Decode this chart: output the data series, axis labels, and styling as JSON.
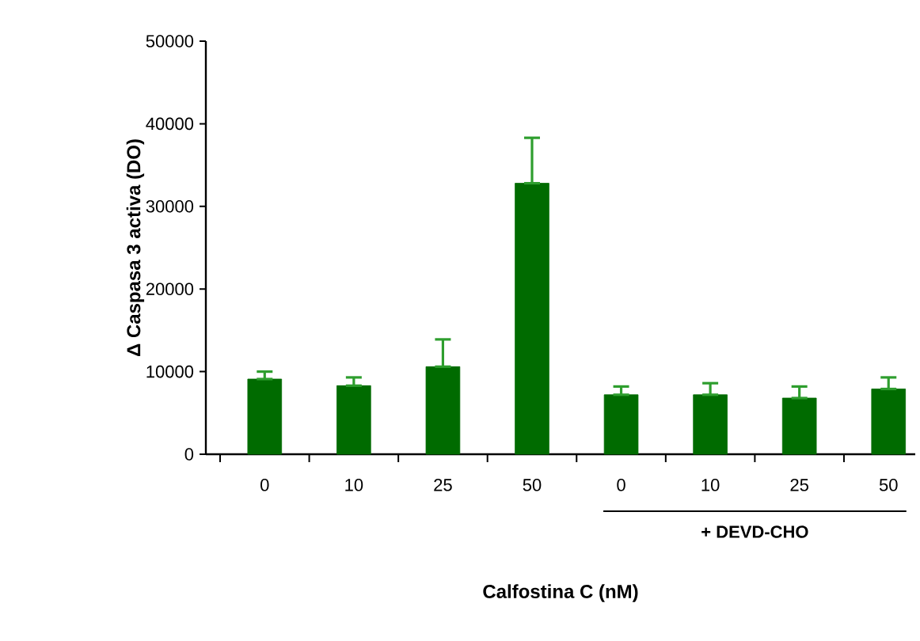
{
  "chart_data": {
    "type": "bar",
    "xlabel": "Calfostina C (nM)",
    "ylabel": "Δ Caspasa 3 activa (DO)",
    "categories": [
      "0",
      "10",
      "25",
      "50",
      "0",
      "10",
      "25",
      "50"
    ],
    "values": [
      9100,
      8300,
      10600,
      32800,
      7200,
      7200,
      6800,
      7900
    ],
    "errors": [
      [
        9100,
        10000
      ],
      [
        8300,
        9300
      ],
      [
        10600,
        13900
      ],
      [
        32800,
        38300
      ],
      [
        7200,
        8200
      ],
      [
        7200,
        8600
      ],
      [
        6800,
        8200
      ],
      [
        7900,
        9300
      ]
    ],
    "color": "#006b00",
    "ylim": [
      0,
      50000
    ],
    "yticks": [
      0,
      10000,
      20000,
      30000,
      40000,
      50000
    ],
    "annotations": [
      "+ DEVD-CHO"
    ]
  }
}
